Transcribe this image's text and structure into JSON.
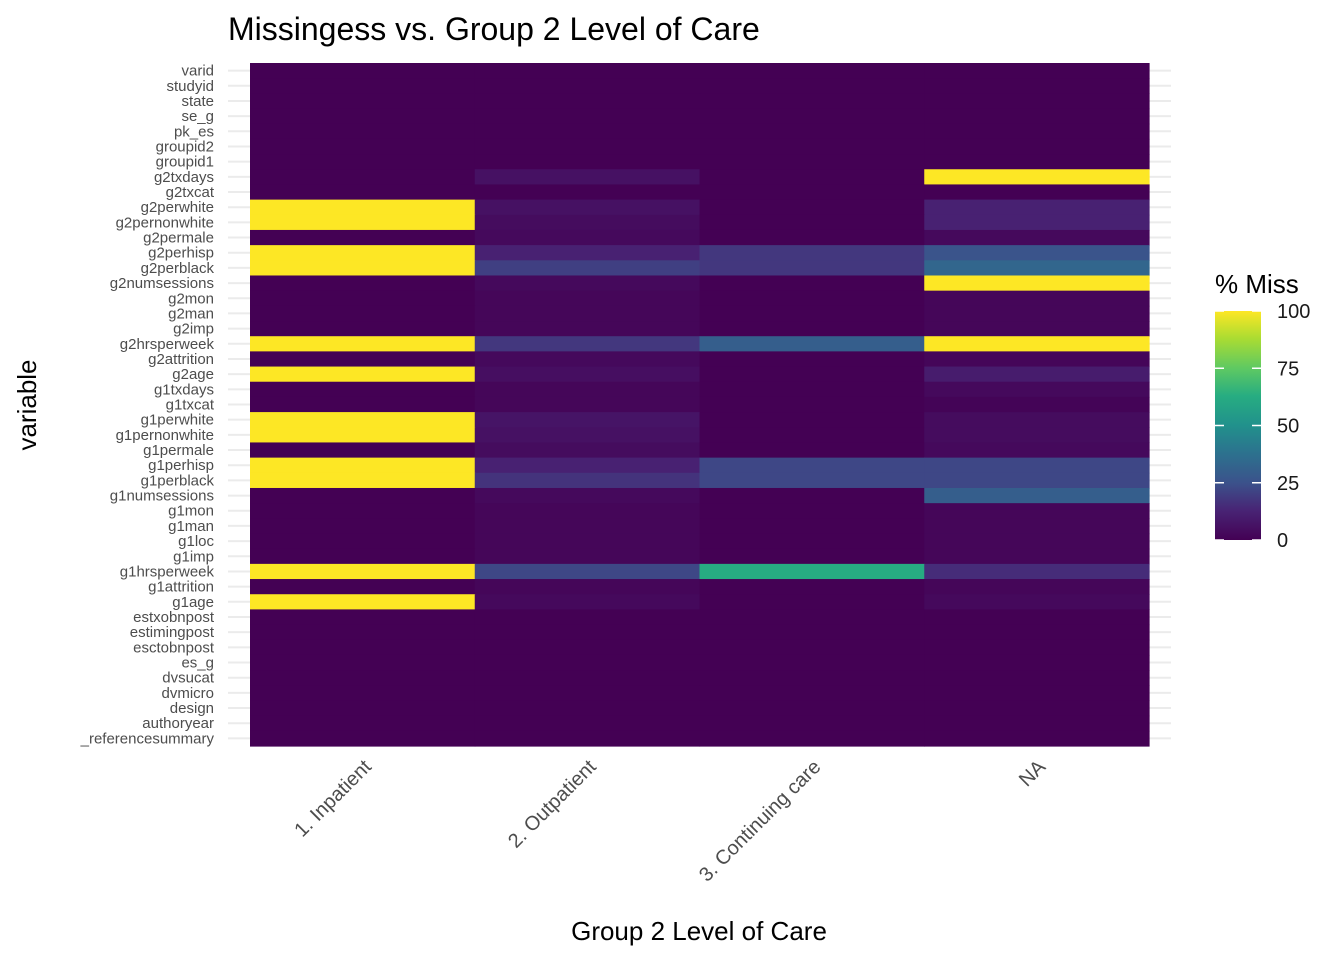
{
  "chart_data": {
    "type": "heatmap",
    "title": "Missingess vs. Group 2 Level of Care",
    "xlabel": "Group 2 Level of Care",
    "ylabel": "variable",
    "legend_title": "% Miss",
    "legend_ticks": [
      0,
      25,
      50,
      75,
      100
    ],
    "colorscale": "viridis",
    "value_range": [
      0,
      100
    ],
    "x_categories": [
      "1. Inpatient",
      "2. Outpatient",
      "3. Continuing care",
      "NA"
    ],
    "y_categories": [
      "varid",
      "studyid",
      "state",
      "se_g",
      "pk_es",
      "groupid2",
      "groupid1",
      "g2txdays",
      "g2txcat",
      "g2perwhite",
      "g2pernonwhite",
      "g2permale",
      "g2perhisp",
      "g2perblack",
      "g2numsessions",
      "g2mon",
      "g2man",
      "g2imp",
      "g2hrsperweek",
      "g2attrition",
      "g2age",
      "g1txdays",
      "g1txcat",
      "g1perwhite",
      "g1pernonwhite",
      "g1permale",
      "g1perhisp",
      "g1perblack",
      "g1numsessions",
      "g1mon",
      "g1man",
      "g1loc",
      "g1imp",
      "g1hrsperweek",
      "g1attrition",
      "g1age",
      "estxobnpost",
      "estimingpost",
      "esctobnpost",
      "es_g",
      "dvsucat",
      "dvmicro",
      "design",
      "authoryear",
      "_referencesummary"
    ],
    "values": [
      [
        0,
        0,
        0,
        0
      ],
      [
        0,
        0,
        0,
        0
      ],
      [
        0,
        0,
        0,
        0
      ],
      [
        0,
        0,
        0,
        0
      ],
      [
        0,
        0,
        0,
        0
      ],
      [
        0,
        0,
        0,
        0
      ],
      [
        0,
        0,
        0,
        0
      ],
      [
        0,
        6,
        0,
        100
      ],
      [
        0,
        0,
        0,
        0
      ],
      [
        100,
        6,
        0,
        12
      ],
      [
        100,
        4,
        0,
        12
      ],
      [
        0,
        3,
        0,
        3
      ],
      [
        100,
        12,
        18,
        26
      ],
      [
        100,
        20,
        18,
        33
      ],
      [
        0,
        3,
        0,
        100
      ],
      [
        0,
        2,
        0,
        2
      ],
      [
        0,
        2,
        0,
        2
      ],
      [
        0,
        2,
        0,
        2
      ],
      [
        100,
        18,
        30,
        100
      ],
      [
        0,
        3,
        0,
        2
      ],
      [
        100,
        5,
        0,
        10
      ],
      [
        0,
        2,
        0,
        3
      ],
      [
        0,
        2,
        0,
        1
      ],
      [
        100,
        7,
        0,
        4
      ],
      [
        100,
        6,
        0,
        4
      ],
      [
        0,
        4,
        0,
        3
      ],
      [
        100,
        12,
        22,
        22
      ],
      [
        100,
        17,
        22,
        22
      ],
      [
        0,
        3,
        0,
        30
      ],
      [
        0,
        2,
        0,
        2
      ],
      [
        0,
        2,
        0,
        2
      ],
      [
        0,
        2,
        0,
        2
      ],
      [
        0,
        2,
        0,
        2
      ],
      [
        100,
        22,
        62,
        15
      ],
      [
        0,
        2,
        0,
        2
      ],
      [
        100,
        3,
        0,
        3
      ],
      [
        0,
        0,
        0,
        0
      ],
      [
        0,
        0,
        0,
        0
      ],
      [
        0,
        0,
        0,
        0
      ],
      [
        0,
        0,
        0,
        0
      ],
      [
        0,
        0,
        0,
        0
      ],
      [
        0,
        0,
        0,
        0
      ],
      [
        0,
        0,
        0,
        0
      ],
      [
        0,
        0,
        0,
        0
      ],
      [
        0,
        0,
        0,
        0
      ]
    ]
  }
}
